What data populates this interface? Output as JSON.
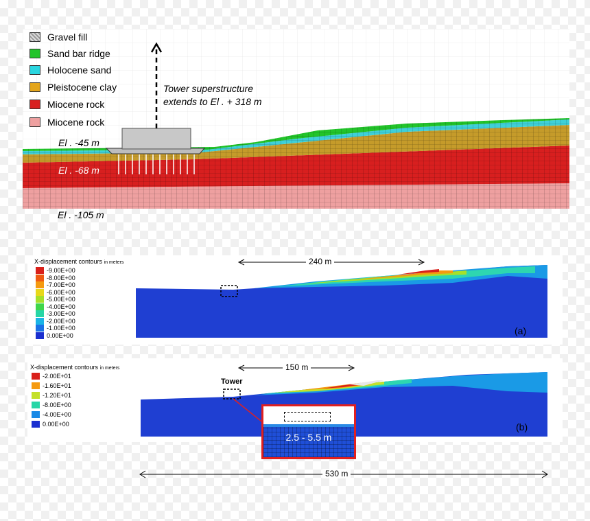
{
  "legend": [
    {
      "label": "Gravel fill",
      "color": "#bdbdbd"
    },
    {
      "label": "Sand bar ridge",
      "color": "#22c42a"
    },
    {
      "label": "Holocene sand",
      "color": "#2ad6e0"
    },
    {
      "label": "Pleistocene clay",
      "color": "#e3a51c"
    },
    {
      "label": "Miocene rock",
      "color": "#d81f1f"
    },
    {
      "label": "Miocene rock",
      "color": "#eea0a0"
    }
  ],
  "top_panel": {
    "tower_note_line1": "Tower superstructure",
    "tower_note_line2": "extends to El . + 318 m",
    "elev1": "El . -45 m",
    "elev2": "El . -68 m",
    "elev3": "El . -105 m"
  },
  "panel_a": {
    "title": "X-displacement contours",
    "units": "in meters",
    "levels": [
      "-9.00E+00",
      "-8.00E+00",
      "-7.00E+00",
      "-6.00E+00",
      "-5.00E+00",
      "-4.00E+00",
      "-3.00E+00",
      "-2.00E+00",
      "-1.00E+00",
      "0.00E+00"
    ],
    "colors": [
      "#d9201a",
      "#ef5a12",
      "#f59a10",
      "#e8d81a",
      "#a6e02a",
      "#3fd64a",
      "#27d6a6",
      "#1ab4e6",
      "#1a72e6",
      "#1a2fcf"
    ],
    "dimension": "240 m",
    "tag": "(a)"
  },
  "panel_b": {
    "title": "X-displacement contours",
    "units": "in meters",
    "levels": [
      "-2.00E+01",
      "-1.60E+01",
      "-1.20E+01",
      "-8.00E+00",
      "-4.00E+00",
      "0.00E+00"
    ],
    "colors": [
      "#d9201a",
      "#f59a10",
      "#c4e02a",
      "#27d6a6",
      "#1a8ae6",
      "#1a2fcf"
    ],
    "dimension": "150 m",
    "tower_label": "Tower",
    "inset_label": "2.5 - 5.5 m",
    "tag": "(b)"
  },
  "overall_dimension": "530 m"
}
